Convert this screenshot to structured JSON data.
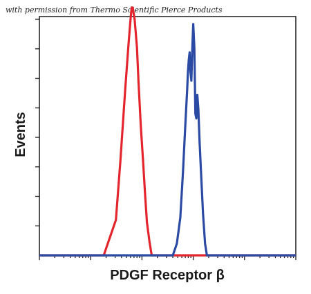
{
  "credit": "with permission from Thermo Scientific Pierce Products",
  "chart_data": {
    "type": "line",
    "xlabel": "PDGF Receptor β",
    "ylabel": "Events",
    "x_scale": "log",
    "xlim": [
      1,
      100000
    ],
    "ylim": [
      0,
      100
    ],
    "grid": false,
    "legend": "none",
    "series": [
      {
        "color": "#e3262e",
        "x": [
          1,
          18,
          31,
          38,
          47,
          55,
          60,
          63,
          66,
          72,
          80,
          86,
          95,
          105,
          115,
          125,
          140,
          155,
          180,
          200,
          210,
          100000
        ],
        "y": [
          0,
          0,
          15,
          40,
          70,
          90,
          100,
          105,
          105,
          100,
          88,
          73,
          55,
          40,
          26,
          14,
          6,
          0,
          0,
          0,
          0,
          0
        ]
      },
      {
        "color": "#2a4aa3",
        "x": [
          1,
          400,
          480,
          560,
          630,
          700,
          760,
          790,
          820,
          850,
          880,
          920,
          960,
          1000,
          1050,
          1100,
          1150,
          1200,
          1260,
          1330,
          1420,
          1550,
          1700,
          1850,
          2000,
          100000
        ],
        "y": [
          0,
          0,
          5,
          16,
          35,
          55,
          70,
          78,
          83,
          86,
          78,
          74,
          88,
          98,
          88,
          60,
          58,
          68,
          62,
          48,
          35,
          18,
          5,
          0,
          0,
          0
        ]
      }
    ]
  }
}
